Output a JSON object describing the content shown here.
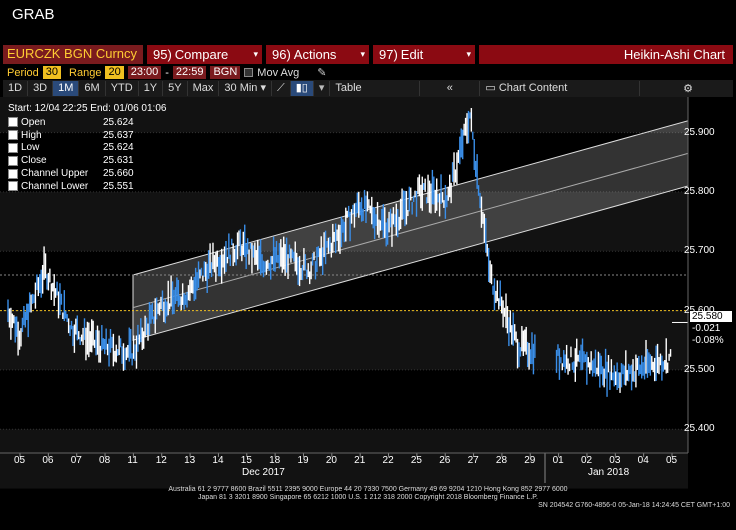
{
  "title": "GRAB",
  "toolbar": {
    "ticker": "EURCZK BGN Curncy",
    "compare": {
      "num": "95)",
      "label": "Compare"
    },
    "actions": {
      "num": "96)",
      "label": "Actions"
    },
    "edit": {
      "num": "97)",
      "label": "Edit"
    },
    "chart_type": "Heikin-Ashi Chart"
  },
  "settings": {
    "period_label": "Period",
    "period_value": "30",
    "range_label": "Range",
    "range_value": "20",
    "time_start": "23:00",
    "dash": "-",
    "time_end": "22:59",
    "source": "BGN",
    "mov_avg": "Mov Avg"
  },
  "ranges": [
    "1D",
    "3D",
    "1M",
    "6M",
    "YTD",
    "1Y",
    "5Y",
    "Max"
  ],
  "active_range": "1M",
  "interval": "30 Min",
  "table_label": "Table",
  "chart_content_label": "Chart Content",
  "info": {
    "header": "Start: 12/04 22:25  End: 01/06 01:06",
    "rows": [
      {
        "name": "Open",
        "value": "25.624"
      },
      {
        "name": "High",
        "value": "25.637"
      },
      {
        "name": "Low",
        "value": "25.624"
      },
      {
        "name": "Close",
        "value": "25.631"
      },
      {
        "name": "Channel Upper",
        "value": "25.660"
      },
      {
        "name": "Channel Lower",
        "value": "25.551"
      }
    ]
  },
  "yaxis": {
    "ticks": [
      "25.900",
      "25.800",
      "25.700",
      "25.600",
      "25.500",
      "25.400"
    ],
    "last_price": "25.580",
    "change": "-0.021",
    "change_pct": "-0.08%"
  },
  "xaxis": {
    "days": [
      "05",
      "06",
      "07",
      "08",
      "11",
      "12",
      "13",
      "14",
      "15",
      "18",
      "19",
      "20",
      "21",
      "22",
      "25",
      "26",
      "27",
      "28",
      "29",
      "01",
      "02",
      "03",
      "04",
      "05"
    ],
    "month_labels": [
      "Dec 2017",
      "Jan 2018"
    ]
  },
  "footer": {
    "line1": "Australia 61 2 9777 8600 Brazil 5511 2395 9000 Europe 44 20 7330 7500 Germany 49 69 9204 1210 Hong Kong 852 2977 6000",
    "line2": "Japan 81 3 3201 8900        Singapore 65 6212 1000        U.S. 1 212 318 2000              Copyright 2018 Bloomberg Finance L.P.",
    "line3": "SN 204542 G760-4856-0 05-Jan-18 14:24:45 CET  GMT+1:00"
  },
  "chart_data": {
    "type": "line",
    "ylim": [
      25.36,
      25.96
    ],
    "series": [
      {
        "x": [
          "12/04",
          "12/05",
          "12/06",
          "12/07",
          "12/08",
          "12/11",
          "12/12",
          "12/13",
          "12/14",
          "12/15",
          "12/18",
          "12/19",
          "12/20",
          "12/21",
          "12/22",
          "12/25",
          "12/26",
          "12/27",
          "12/27b",
          "12/28",
          "12/29",
          "01/01",
          "01/02",
          "01/03",
          "01/04",
          "01/05"
        ],
        "values": [
          25.6,
          25.56,
          25.67,
          25.57,
          25.54,
          25.53,
          25.61,
          25.63,
          25.68,
          25.71,
          25.68,
          25.69,
          25.67,
          25.72,
          25.78,
          25.74,
          25.8,
          25.79,
          25.93,
          25.66,
          25.54,
          25.52,
          25.51,
          25.49,
          25.51,
          25.52
        ]
      }
    ],
    "channel": {
      "upper": [
        25.66,
        25.92
      ],
      "lower": [
        25.55,
        25.81
      ]
    },
    "last": 25.58
  }
}
